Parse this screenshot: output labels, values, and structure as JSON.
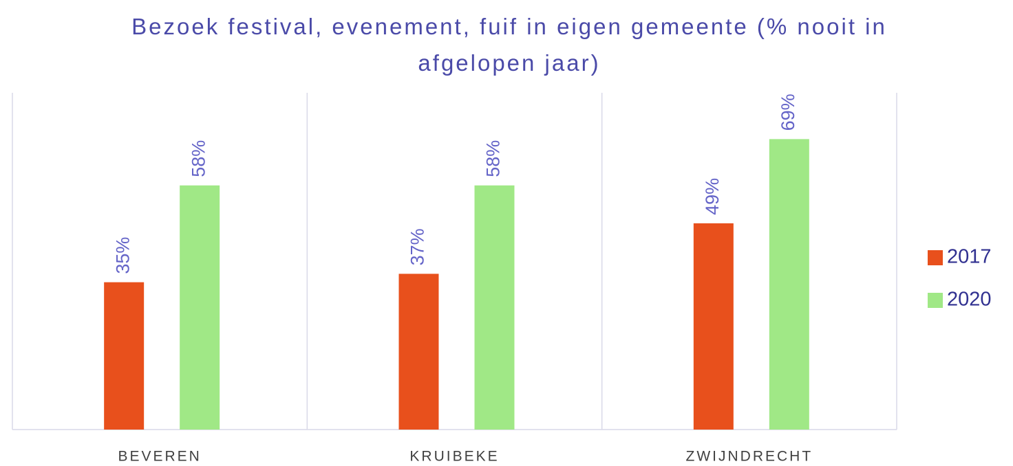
{
  "chart_data": {
    "type": "bar",
    "title": "Bezoek festival, evenement, fuif in eigen gemeente (% nooit in afgelopen jaar)",
    "categories": [
      "BEVEREN",
      "KRUIBEKE",
      "ZWIJNDRECHT"
    ],
    "series": [
      {
        "name": "2017",
        "color": "#e8501c",
        "values": [
          35,
          37,
          49
        ],
        "value_labels": [
          "35%",
          "37%",
          "49%"
        ]
      },
      {
        "name": "2020",
        "color": "#a0e886",
        "values": [
          58,
          58,
          69
        ],
        "value_labels": [
          "58%",
          "58%",
          "69%"
        ]
      }
    ],
    "ylim": [
      0,
      80
    ],
    "legend": "right"
  }
}
